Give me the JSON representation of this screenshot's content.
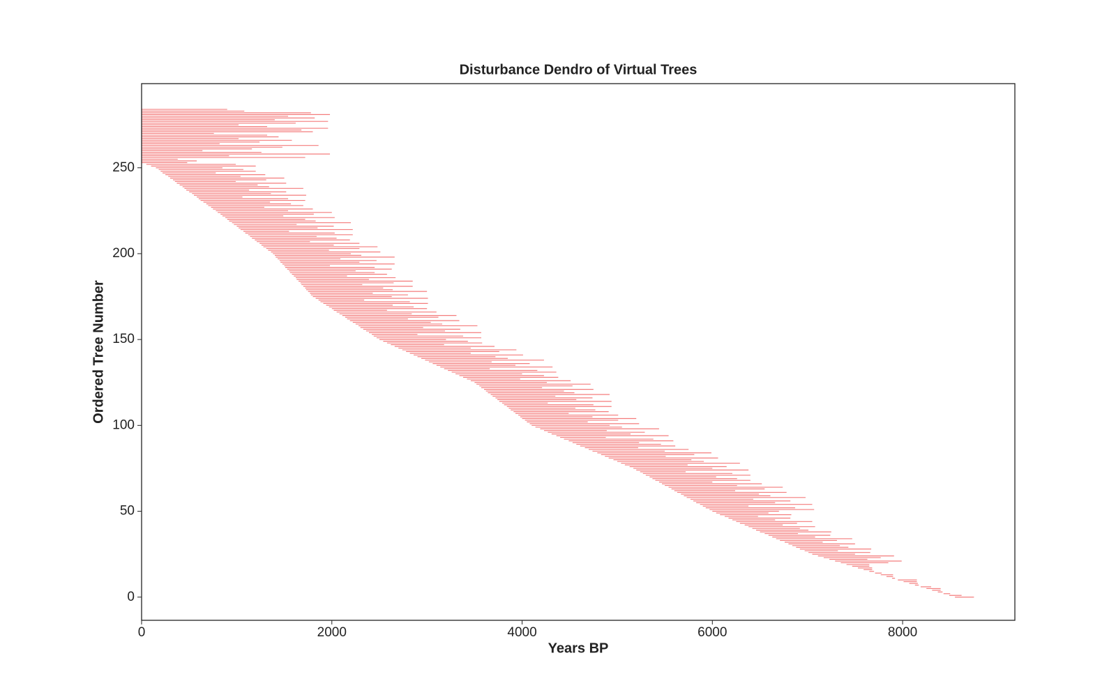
{
  "chart_data": {
    "type": "range",
    "title": "Disturbance Dendro of Virtual Trees",
    "xlabel": "Years BP",
    "ylabel": "Ordered Tree Number",
    "xlim": [
      0,
      9180
    ],
    "ylim": [
      -13.5,
      299
    ],
    "xticks": [
      0,
      2000,
      4000,
      6000,
      8000
    ],
    "yticks": [
      0,
      50,
      100,
      150,
      200,
      250
    ],
    "color": "#f47c7c",
    "starts": [
      8550,
      8490,
      8430,
      8370,
      8310,
      8250,
      8190,
      8130,
      8070,
      8010,
      7950,
      7890,
      7830,
      7770,
      7710,
      7650,
      7590,
      7530,
      7470,
      7410,
      7350,
      7290,
      7230,
      7170,
      7110,
      7050,
      7010,
      6970,
      6920,
      6880,
      6840,
      6800,
      6760,
      6710,
      6670,
      6630,
      6590,
      6550,
      6500,
      6460,
      6420,
      6380,
      6340,
      6290,
      6250,
      6210,
      6170,
      6130,
      6080,
      6040,
      6000,
      5970,
      5930,
      5900,
      5870,
      5830,
      5800,
      5770,
      5730,
      5700,
      5670,
      5630,
      5600,
      5570,
      5540,
      5500,
      5470,
      5440,
      5400,
      5370,
      5340,
      5300,
      5270,
      5240,
      5200,
      5170,
      5130,
      5080,
      5040,
      5000,
      4960,
      4910,
      4870,
      4830,
      4790,
      4740,
      4700,
      4660,
      4610,
      4570,
      4530,
      4490,
      4440,
      4400,
      4360,
      4310,
      4270,
      4230,
      4190,
      4140,
      4100,
      4080,
      4050,
      4030,
      4000,
      3980,
      3960,
      3930,
      3910,
      3880,
      3860,
      3840,
      3810,
      3790,
      3760,
      3740,
      3720,
      3690,
      3670,
      3640,
      3620,
      3600,
      3570,
      3550,
      3520,
      3500,
      3460,
      3420,
      3380,
      3340,
      3300,
      3260,
      3220,
      3180,
      3140,
      3100,
      3060,
      3020,
      2980,
      2940,
      2900,
      2860,
      2820,
      2780,
      2740,
      2700,
      2660,
      2620,
      2580,
      2540,
      2500,
      2470,
      2440,
      2420,
      2390,
      2360,
      2330,
      2300,
      2280,
      2250,
      2220,
      2190,
      2160,
      2140,
      2110,
      2080,
      2050,
      2020,
      2000,
      1970,
      1940,
      1910,
      1880,
      1860,
      1830,
      1800,
      1780,
      1770,
      1750,
      1730,
      1720,
      1700,
      1680,
      1670,
      1650,
      1630,
      1620,
      1600,
      1580,
      1560,
      1550,
      1530,
      1510,
      1500,
      1480,
      1460,
      1450,
      1430,
      1410,
      1400,
      1380,
      1360,
      1330,
      1310,
      1280,
      1260,
      1240,
      1210,
      1190,
      1160,
      1140,
      1120,
      1090,
      1070,
      1040,
      1020,
      1000,
      970,
      950,
      920,
      900,
      880,
      850,
      830,
      800,
      780,
      750,
      730,
      700,
      680,
      650,
      620,
      600,
      580,
      550,
      530,
      500,
      470,
      450,
      430,
      400,
      370,
      350,
      330,
      300,
      280,
      250,
      220,
      200,
      180,
      150,
      100,
      50,
      0,
      0,
      0,
      0,
      0,
      0,
      0,
      0,
      0,
      0,
      0,
      0,
      0,
      0,
      0,
      0,
      0,
      0,
      0,
      0,
      0,
      0,
      0,
      0,
      0,
      0,
      0,
      0,
      0,
      0,
      0,
      0
    ],
    "ends": [
      8750,
      8620,
      8500,
      8420,
      8400,
      8400,
      8300,
      8170,
      8160,
      8150,
      8150,
      7920,
      7900,
      7900,
      7780,
      7700,
      7680,
      7680,
      7650,
      7650,
      7850,
      7990,
      7630,
      7770,
      7910,
      7500,
      7660,
      7320,
      7670,
      7430,
      7340,
      7500,
      7160,
      7310,
      7470,
      7080,
      7240,
      6900,
      7250,
      7010,
      6920,
      7080,
      6740,
      6890,
      7050,
      6660,
      6820,
      6480,
      6830,
      6590,
      6700,
      7070,
      6870,
      6380,
      7050,
      6660,
      6820,
      6430,
      6980,
      6610,
      6490,
      6780,
      6240,
      6550,
      6740,
      6260,
      6520,
      6000,
      6400,
      6260,
      6040,
      6400,
      6210,
      5720,
      6380,
      6000,
      6150,
      5740,
      6290,
      5910,
      5780,
      6060,
      5510,
      5810,
      5990,
      5500,
      5750,
      5220,
      5610,
      5460,
      5230,
      5590,
      5380,
      4880,
      5540,
      5140,
      5290,
      4890,
      5440,
      5050,
      4920,
      5230,
      4690,
      5010,
      5200,
      4740,
      5010,
      4490,
      4910,
      4770,
      4560,
      4940,
      4750,
      4270,
      4940,
      4570,
      4740,
      4350,
      4920,
      4550,
      4440,
      4750,
      4210,
      4530,
      4720,
      4260,
      4510,
      3980,
      4380,
      4230,
      4000,
      4360,
      4160,
      3660,
      4320,
      3930,
      4080,
      3680,
      4230,
      3850,
      3720,
      4010,
      3460,
      3760,
      3940,
      3460,
      3710,
      3180,
      3580,
      3430,
      3200,
      3570,
      3380,
      2900,
      3570,
      3190,
      3350,
      2960,
      3530,
      3160,
      3040,
      3340,
      2800,
      3120,
      3310,
      2840,
      3100,
      2580,
      3000,
      2860,
      2640,
      3010,
      2820,
      2340,
      3010,
      2630,
      2800,
      2430,
      3000,
      2640,
      2540,
      2850,
      2320,
      2650,
      2850,
      2390,
      2670,
      2160,
      2580,
      2450,
      2250,
      2630,
      2450,
      1980,
      2660,
      2290,
      2470,
      2090,
      2660,
      2310,
      2200,
      2510,
      1970,
      2290,
      2480,
      2020,
      2290,
      1770,
      2190,
      2050,
      1840,
      2220,
      2030,
      1550,
      2220,
      1850,
      2020,
      1630,
      2200,
      1830,
      1720,
      2030,
      1490,
      1810,
      2000,
      1540,
      1800,
      1290,
      1700,
      1570,
      1350,
      1720,
      1540,
      1060,
      1730,
      1360,
      1520,
      1130,
      1700,
      1340,
      1220,
      1520,
      990,
      1310,
      1500,
      1040,
      1300,
      780,
      1200,
      1070,
      850,
      1200,
      990,
      480,
      580,
      380,
      1720,
      920,
      1980,
      1260,
      640,
      1160,
      1480,
      1860,
      820,
      1240,
      1580,
      1020,
      1440,
      1320,
      760,
      1800,
      1680,
      1960,
      1320,
      1020,
      1620,
      1960,
      1400,
      1820,
      1540,
      1980,
      1780,
      1080,
      900
    ]
  }
}
